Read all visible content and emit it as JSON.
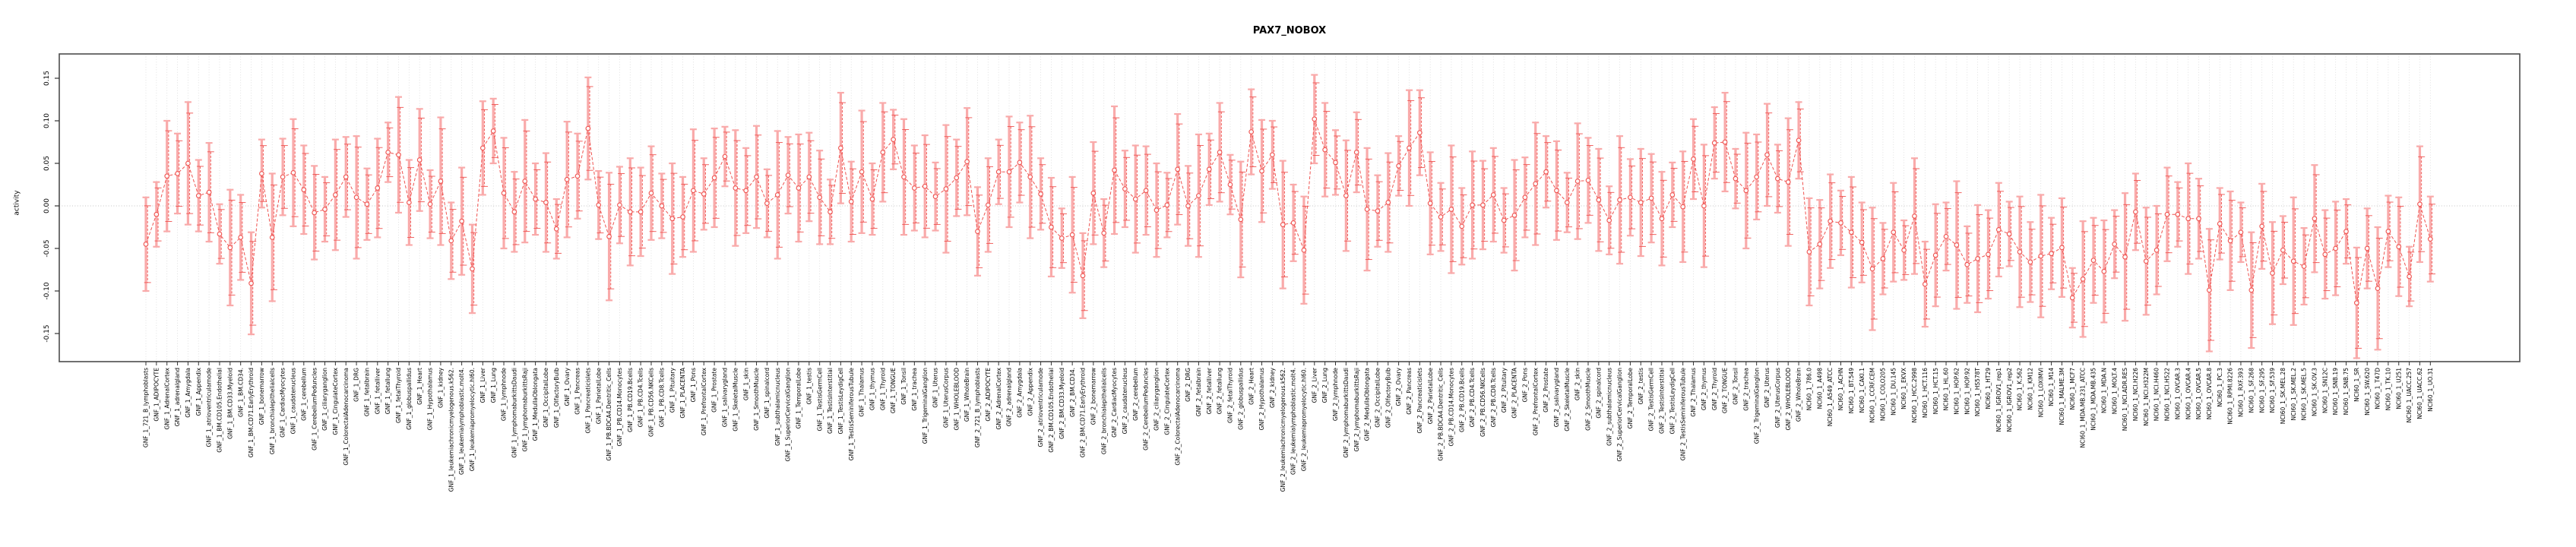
{
  "title": "PAX7_NOBOX",
  "ylabel": "activity",
  "chart_data": {
    "type": "line",
    "title": "PAX7_NOBOX",
    "xlabel": "",
    "ylabel": "activity",
    "ylim": [
      -0.183,
      0.179
    ],
    "yticks": [
      0.15,
      0.1,
      0.05,
      0.0,
      -0.05,
      -0.1,
      -0.15
    ],
    "grid": "dotted vertical gridline at every category; dotted horizontal line at y=0",
    "legend": null,
    "marker": "open-circle",
    "line_style": "dashed",
    "point_color": "#ef5350",
    "error_bar_color": "#f9aaaa",
    "categories": [
      "GNF_1_721_B_lymphoblasts",
      "GNF_1_ADIPOCYTE",
      "GNF_1_AdrenalCortex",
      "GNF_1_adrenalgland",
      "GNF_1_Amygdala",
      "GNF_1_Appendix",
      "GNF_1_atrioventricularnode",
      "GNF_1_BM.CD105.Endothelial",
      "GNF_1_BM.CD33.Myeloid",
      "GNF_1_BM.CD34.",
      "GNF_1_BM.CD71.EarlyErythroid",
      "GNF_1_bonemarrow",
      "GNF_1_bronchialepithelialcells",
      "GNF_1_CardiacMyocytes",
      "GNF_1_caudatenucleus",
      "GNF_1_cerebellum",
      "GNF_1_CerebellumPeduncles",
      "GNF_1_ciliaryganglion",
      "GNF_1_CingulateCortex",
      "GNF_1_ColorectalAdenocarcinoma",
      "GNF_1_DRG",
      "GNF_1_fetalbrain",
      "GNF_1_fetalliver",
      "GNF_1_fetallung",
      "GNF_1_fetalThyroid",
      "GNF_1_globuspallidus",
      "GNF_1_Heart",
      "GNF_1_Hypothalamus",
      "GNF_1_kidney",
      "GNF_1_leukemiachronicmyelogenous.k562.",
      "GNF_1_leukemialymphoblastic.molt4.",
      "GNF_1_leukemiapromyelocytic.hl60.",
      "GNF_1_Liver",
      "GNF_1_Lung",
      "GNF_1_lymphnode",
      "GNF_1_lymphomaburkittsDaudi",
      "GNF_1_lymphomaburkittsRaji",
      "GNF_1_MedullaOblongata",
      "GNF_1_OccipitalLobe",
      "GNF_1_OlfactoryBulb",
      "GNF_1_Ovary",
      "GNF_1_Pancreas",
      "GNF_1_Pancreaticislets",
      "GNF_1_ParietalLobe",
      "GNF_1_PB.BDCA4.Dentritic_Cells",
      "GNF_1_PB.CD14.Monocytes",
      "GNF_1_PB.CD19.Bcells",
      "GNF_1_PB.CD4.Tcells",
      "GNF_1_PB.CD56.NKCells",
      "GNF_1_PB.CD8.Tcells",
      "GNF_1_Pituitary",
      "GNF_1_PLACENTA",
      "GNF_1_Pons",
      "GNF_1_PrefrontalCortex",
      "GNF_1_Prostate",
      "GNF_1_salivarygland",
      "GNF_1_SkeletalMuscle",
      "GNF_1_skin",
      "GNF_1_SmoothMuscle",
      "GNF_1_spinalcord",
      "GNF_1_subthalamicnucleus",
      "GNF_1_SuperiorCervicalGanglion",
      "GNF_1_TemporalLobe",
      "GNF_1_testis",
      "GNF_1_TestisGermCell",
      "GNF_1_TestisInterstitial",
      "GNF_1_TestisLeydigCell",
      "GNF_1_TestisSeminiferousTubule",
      "GNF_1_Thalamus",
      "GNF_1_thymus",
      "GNF_1_Thyroid",
      "GNF_1_TONGUE",
      "GNF_1_Tonsil",
      "GNF_1_trachea",
      "GNF_1_TrigeminalGanglion",
      "GNF_1_Uterus",
      "GNF_1_UterusCorpus",
      "GNF_1_WHOLEBLOOD",
      "GNF_1_WholeBrain",
      "GNF_2_721_B_lymphoblasts",
      "GNF_2_ADIPOCYTE",
      "GNF_2_AdrenalCortex",
      "GNF_2_adrenalgland",
      "GNF_2_Amygdala",
      "GNF_2_Appendix",
      "GNF_2_atrioventricularnode",
      "GNF_2_BM.CD105.Endothelial",
      "GNF_2_BM.CD33.Myeloid",
      "GNF_2_BM.CD34.",
      "GNF_2_BM.CD71.EarlyErythroid",
      "GNF_2_bonemarrow",
      "GNF_2_bronchialepithelialcells",
      "GNF_2_CardiacMyocytes",
      "GNF_2_caudatenucleus",
      "GNF_2_cerebellum",
      "GNF_2_CerebellumPeduncles",
      "GNF_2_ciliaryganglion",
      "GNF_2_CingulateCortex",
      "GNF_2_ColorectalAdenocarcinoma",
      "GNF_2_DRG",
      "GNF_2_fetalbrain",
      "GNF_2_fetalliver",
      "GNF_2_fetallung",
      "GNF_2_fetalThyroid",
      "GNF_2_globuspallidus",
      "GNF_2_Heart",
      "GNF_2_Hypothalamus",
      "GNF_2_kidney",
      "GNF_2_leukemiachronicmyelogenous.k562.",
      "GNF_2_leukemialymphoblastic.molt4.",
      "GNF_2_leukemiapromyelocytic.hl60.",
      "GNF_2_Liver",
      "GNF_2_Lung",
      "GNF_2_lymphnode",
      "GNF_2_lymphomaburkittsDaudi",
      "GNF_2_lymphomaburkittsRaji",
      "GNF_2_MedullaOblongata",
      "GNF_2_OccipitalLobe",
      "GNF_2_OlfactoryBulb",
      "GNF_2_Ovary",
      "GNF_2_Pancreas",
      "GNF_2_Pancreaticislets",
      "GNF_2_ParietalLobe",
      "GNF_2_PB.BDCA4.Dentritic_Cells",
      "GNF_2_PB.CD14.Monocytes",
      "GNF_2_PB.CD19.Bcells",
      "GNF_2_PB.CD4.Tcells",
      "GNF_2_PB.CD56.NKCells",
      "GNF_2_PB.CD8.Tcells",
      "GNF_2_Pituitary",
      "GNF_2_PLACENTA",
      "GNF_2_Pons",
      "GNF_2_PrefrontalCortex",
      "GNF_2_Prostate",
      "GNF_2_salivarygland",
      "GNF_2_SkeletalMuscle",
      "GNF_2_skin",
      "GNF_2_SmoothMuscle",
      "GNF_2_spinalcord",
      "GNF_2_subthalamicnucleus",
      "GNF_2_SuperiorCervicalGanglion",
      "GNF_2_TemporalLobe",
      "GNF_2_testis",
      "GNF_2_TestisGermCell",
      "GNF_2_TestisInterstitial",
      "GNF_2_TestisLeydigCell",
      "GNF_2_TestisSeminiferousTubule",
      "GNF_2_Thalamus",
      "GNF_2_thymus",
      "GNF_2_Thyroid",
      "GNF_2_TONGUE",
      "GNF_2_Tonsil",
      "GNF_2_trachea",
      "GNF_2_TrigeminalGanglion",
      "GNF_2_Uterus",
      "GNF_2_UterusCorpus",
      "GNF_2_WHOLEBLOOD",
      "GNF_2_WholeBrain",
      "NCI60_1_786.0",
      "NCI60_1_A498",
      "NCI60_1_A549_ATCC",
      "NCI60_1_ACHN",
      "NCI60_1_BT.549",
      "NCI60_1_CAKI.1",
      "NCI60_1_CCRF.CEM",
      "NCI60_1_COLO205",
      "NCI60_1_DU.145",
      "NCI60_1_EKVX",
      "NCI60_1_HCC.2998",
      "NCI60_1_HCT.116",
      "NCI60_1_HCT.15",
      "NCI60_1_HL.60",
      "NCI60_1_HOP.62",
      "NCI60_1_HOP.92",
      "NCI60_1_HS578T",
      "NCI60_1_HT29",
      "NCI60_1_IGROV1_rep1",
      "NCI60_1_IGROV1_rep2",
      "NCI60_1_K.562",
      "NCI60_1_KM12",
      "NCI60_1_LOXIMVI",
      "NCI60_1_M14",
      "NCI60_1_MALME.3M",
      "NCI60_1_MCF7",
      "NCI60_1_MDA.MB.231_ATCC",
      "NCI60_1_MDA.MB.435",
      "NCI60_1_MDA.N",
      "NCI60_1_MOLT.4",
      "NCI60_1_NCI.ADR.RES",
      "NCI60_1_NCI.H226",
      "NCI60_1_NCI.H322M",
      "NCI60_1_NCI.H460",
      "NCI60_1_NCI.H522",
      "NCI60_1_OVCAR.3",
      "NCI60_1_OVCAR.4",
      "NCI60_1_OVCAR.5",
      "NCI60_1_OVCAR.8",
      "NCI60_1_PC.3",
      "NCI60_1_RPMI.8226",
      "NCI60_1_RXF.393",
      "NCI60_1_SF.268",
      "NCI60_1_SF.295",
      "NCI60_1_SF.539",
      "NCI60_1_SK.MEL.28",
      "NCI60_1_SK.MEL.2",
      "NCI60_1_SK.MEL.5",
      "NCI60_1_SK.OV.3",
      "NCI60_1_SN12C",
      "NCI60_1_SNB.19",
      "NCI60_1_SNB.75",
      "NCI60_1_SR",
      "NCI60_1_SW.620",
      "NCI60_1_T47D",
      "NCI60_1_TK.10",
      "NCI60_1_U251",
      "NCI60_1_UACC.257",
      "NCI60_1_UACC.62",
      "NCI60_1_UO.31"
    ],
    "values": [
      -0.045,
      -0.01,
      0.035,
      0.038,
      0.05,
      0.012,
      0.016,
      -0.033,
      -0.049,
      -0.037,
      -0.091,
      0.038,
      -0.037,
      0.034,
      0.039,
      0.019,
      -0.008,
      -0.004,
      0.013,
      0.034,
      0.01,
      0.002,
      0.021,
      0.063,
      0.06,
      0.004,
      0.054,
      0.002,
      0.029,
      -0.041,
      -0.018,
      -0.074,
      0.068,
      0.088,
      0.015,
      -0.007,
      0.029,
      0.008,
      0.004,
      -0.027,
      0.031,
      0.035,
      0.091,
      0.001,
      -0.036,
      0.001,
      -0.007,
      -0.007,
      0.015,
      0.0,
      -0.015,
      -0.013,
      0.018,
      0.014,
      0.033,
      0.058,
      0.021,
      0.018,
      0.034,
      0.003,
      0.013,
      0.036,
      0.021,
      0.034,
      0.01,
      -0.007,
      0.068,
      0.005,
      0.04,
      0.008,
      0.063,
      0.078,
      0.034,
      0.021,
      0.023,
      0.011,
      0.02,
      0.033,
      0.052,
      -0.03,
      0.001,
      0.04,
      0.04,
      0.051,
      0.034,
      0.014,
      -0.025,
      -0.038,
      -0.034,
      -0.082,
      0.015,
      -0.032,
      0.042,
      0.02,
      0.008,
      0.018,
      -0.005,
      0.001,
      0.043,
      0.0,
      0.012,
      0.043,
      0.063,
      0.025,
      -0.016,
      0.087,
      0.041,
      0.06,
      -0.022,
      -0.02,
      -0.052,
      0.102,
      0.066,
      0.051,
      0.012,
      0.063,
      -0.004,
      -0.006,
      0.004,
      0.047,
      0.068,
      0.086,
      0.003,
      -0.013,
      -0.004,
      -0.024,
      0.001,
      0.001,
      0.013,
      -0.017,
      -0.011,
      0.01,
      0.026,
      0.04,
      0.018,
      0.004,
      0.029,
      0.03,
      0.007,
      -0.017,
      0.007,
      0.01,
      0.004,
      0.009,
      -0.015,
      0.013,
      -0.001,
      0.055,
      0.0,
      0.074,
      0.075,
      0.032,
      0.018,
      0.034,
      0.06,
      0.032,
      0.028,
      0.077,
      -0.054,
      -0.045,
      -0.018,
      -0.02,
      -0.031,
      -0.043,
      -0.074,
      -0.062,
      -0.031,
      -0.052,
      -0.012,
      -0.092,
      -0.058,
      -0.036,
      -0.046,
      -0.069,
      -0.062,
      -0.057,
      -0.028,
      -0.033,
      -0.054,
      -0.066,
      -0.059,
      -0.056,
      -0.049,
      -0.108,
      -0.086,
      -0.064,
      -0.077,
      -0.045,
      -0.06,
      -0.007,
      -0.065,
      -0.052,
      -0.01,
      -0.01,
      -0.015,
      -0.015,
      -0.099,
      -0.021,
      -0.041,
      -0.031,
      -0.099,
      -0.024,
      -0.079,
      -0.052,
      -0.065,
      -0.071,
      -0.015,
      -0.057,
      -0.05,
      -0.03,
      -0.114,
      -0.05,
      -0.097,
      -0.03,
      -0.048,
      -0.083,
      0.002,
      -0.039
    ],
    "errors": [
      0.055,
      0.038,
      0.065,
      0.047,
      0.072,
      0.042,
      0.058,
      0.035,
      0.068,
      0.05,
      0.06,
      0.04,
      0.075,
      0.045,
      0.063,
      0.052,
      0.055,
      0.038,
      0.065,
      0.047,
      0.072,
      0.042,
      0.058,
      0.035,
      0.068,
      0.05,
      0.06,
      0.04,
      0.075,
      0.045,
      0.063,
      0.052,
      0.055,
      0.038,
      0.065,
      0.047,
      0.072,
      0.042,
      0.058,
      0.035,
      0.068,
      0.05,
      0.06,
      0.04,
      0.075,
      0.045,
      0.063,
      0.052,
      0.055,
      0.038,
      0.065,
      0.047,
      0.072,
      0.042,
      0.058,
      0.035,
      0.068,
      0.05,
      0.06,
      0.04,
      0.075,
      0.045,
      0.063,
      0.052,
      0.055,
      0.038,
      0.065,
      0.047,
      0.072,
      0.042,
      0.058,
      0.035,
      0.068,
      0.05,
      0.06,
      0.04,
      0.075,
      0.045,
      0.063,
      0.052,
      0.055,
      0.038,
      0.065,
      0.047,
      0.072,
      0.042,
      0.058,
      0.035,
      0.068,
      0.05,
      0.06,
      0.04,
      0.075,
      0.045,
      0.063,
      0.052,
      0.055,
      0.038,
      0.065,
      0.047,
      0.072,
      0.042,
      0.058,
      0.035,
      0.068,
      0.05,
      0.06,
      0.04,
      0.075,
      0.045,
      0.063,
      0.052,
      0.055,
      0.038,
      0.065,
      0.047,
      0.072,
      0.042,
      0.058,
      0.035,
      0.068,
      0.05,
      0.06,
      0.04,
      0.075,
      0.045,
      0.063,
      0.052,
      0.055,
      0.038,
      0.065,
      0.047,
      0.072,
      0.042,
      0.058,
      0.035,
      0.068,
      0.05,
      0.06,
      0.04,
      0.075,
      0.045,
      0.063,
      0.052,
      0.055,
      0.038,
      0.065,
      0.047,
      0.072,
      0.042,
      0.058,
      0.035,
      0.068,
      0.05,
      0.06,
      0.04,
      0.075,
      0.045,
      0.063,
      0.052,
      0.055,
      0.038,
      0.065,
      0.047,
      0.072,
      0.042,
      0.058,
      0.035,
      0.068,
      0.05,
      0.06,
      0.04,
      0.075,
      0.045,
      0.063,
      0.052,
      0.055,
      0.038,
      0.065,
      0.047,
      0.072,
      0.042,
      0.058,
      0.035,
      0.068,
      0.05,
      0.06,
      0.04,
      0.075,
      0.045,
      0.063,
      0.052,
      0.055,
      0.038,
      0.065,
      0.047,
      0.072,
      0.042,
      0.058,
      0.035,
      0.068,
      0.05,
      0.06,
      0.04,
      0.075,
      0.045,
      0.063,
      0.052,
      0.055,
      0.038,
      0.065,
      0.047,
      0.072,
      0.042,
      0.058,
      0.035,
      0.068,
      0.05
    ]
  }
}
